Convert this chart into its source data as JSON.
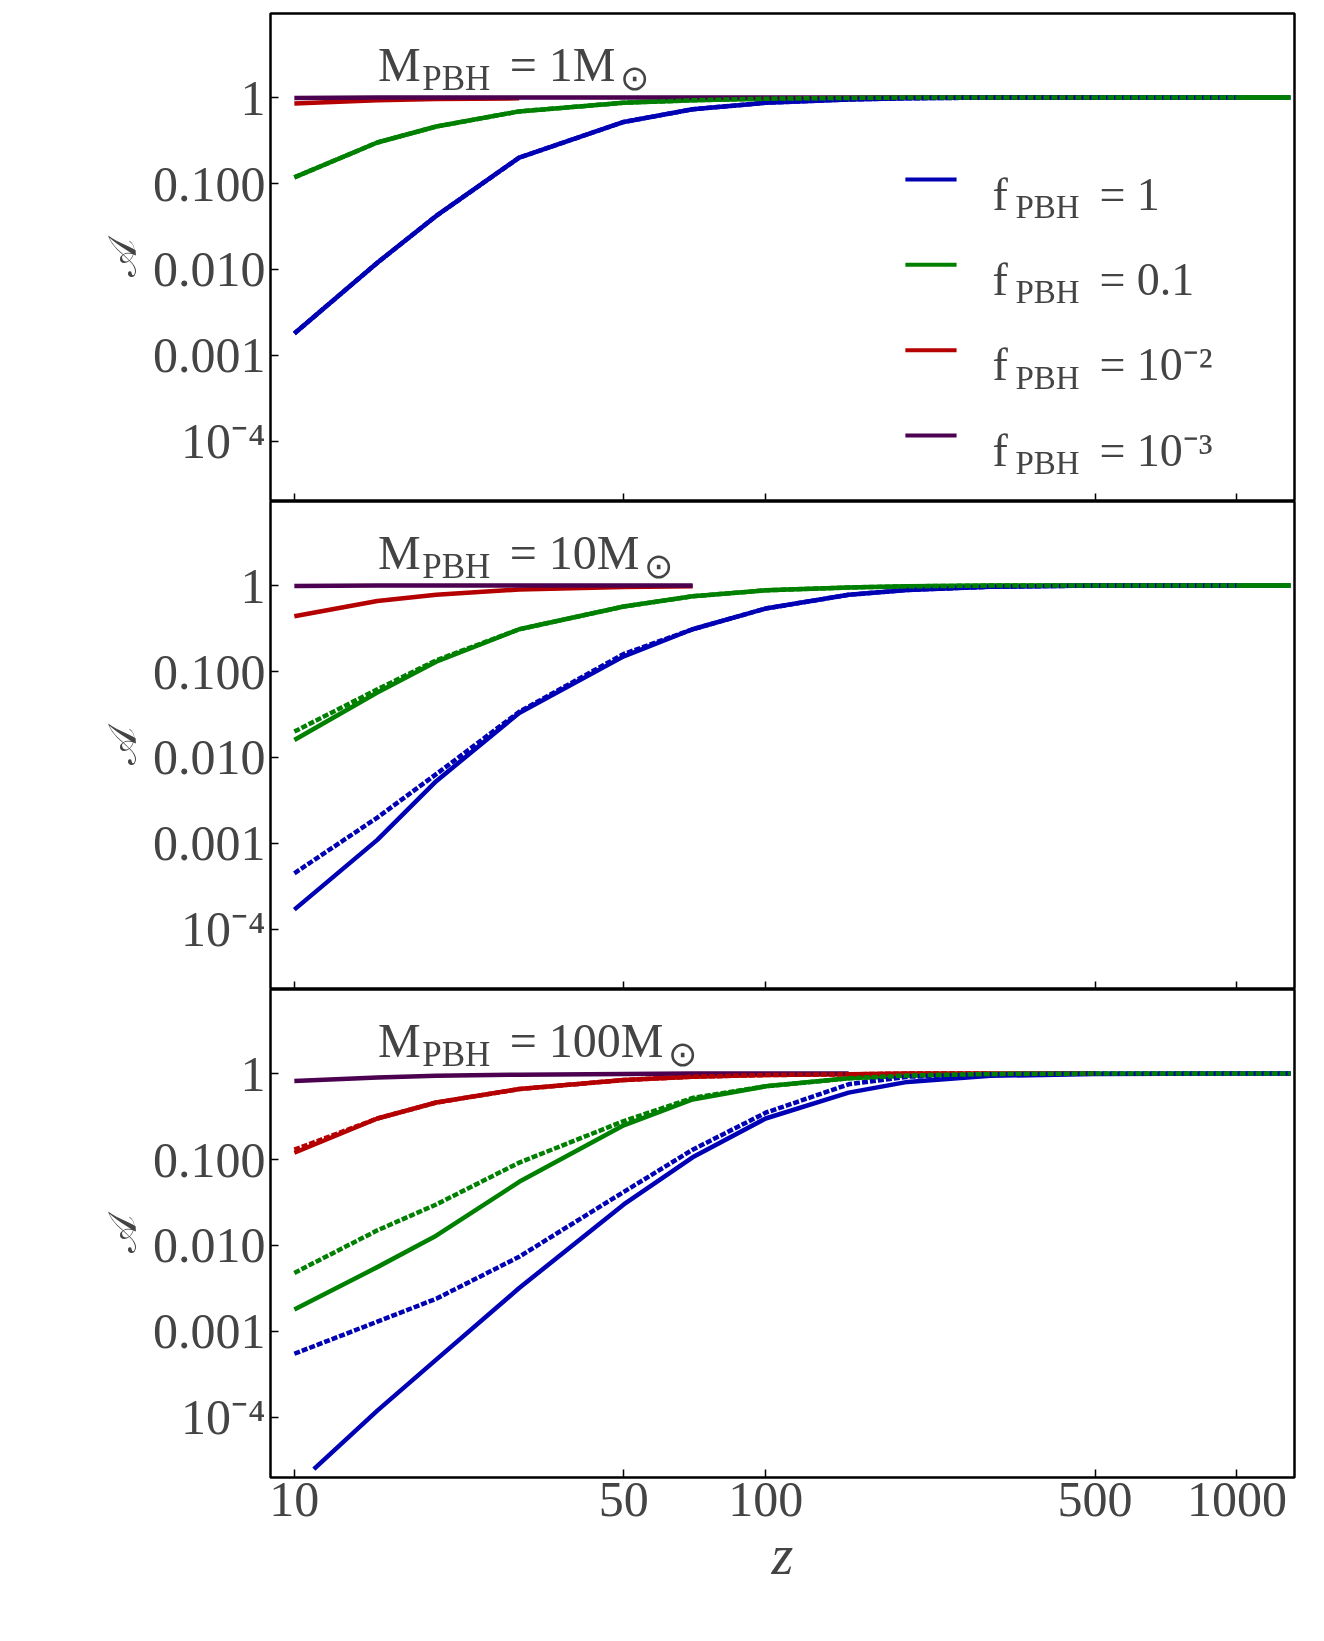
{
  "chart_data": [
    {
      "type": "line",
      "annotations": [
        "M$_{PBH}$ = 1M$_{⊙}$"
      ],
      "ylabel": "𝒜",
      "log": "xy",
      "grid": false,
      "legend": "right",
      "tick_labels": "y",
      "line_style": "solid",
      "xlim": [
        8.9,
        1325
      ],
      "xticks": [
        10,
        50,
        100,
        500,
        1000
      ],
      "ylim": [
        2e-05,
        9.5
      ],
      "yticks": [
        1,
        {
          "value": 0.1,
          "label": "0.100"
        },
        {
          "value": 0.01,
          "label": "0.010"
        },
        {
          "value": 0.001,
          "label": "0.001"
        },
        {
          "value": 0.0001,
          "label": "10⁻⁴"
        }
      ],
      "x": [
        10,
        15,
        20,
        30,
        50,
        70,
        100,
        150,
        200,
        300,
        500,
        1000,
        1300
      ],
      "series": [
        {
          "name": "f$_{PBH}$ = 1",
          "color": "#0000b4",
          "values": [
            0.0018,
            0.012,
            0.042,
            0.2,
            0.52,
            0.73,
            0.87,
            0.95,
            0.98,
            1,
            1,
            1,
            1
          ]
        },
        {
          "name": "f$_{PBH}$ = 0.1",
          "color": "#008000",
          "values": [
            0.118,
            0.3,
            0.46,
            0.69,
            0.87,
            0.93,
            0.97,
            0.99,
            1,
            1,
            1,
            1,
            1
          ]
        },
        {
          "name": "f$_{PBH}$ = 10⁻²",
          "color": "#b40000",
          "values": [
            0.85,
            0.93,
            0.96,
            0.98,
            null,
            null,
            null,
            null,
            null,
            null,
            null,
            null,
            null
          ]
        },
        {
          "name": "f$_{PBH}$ = 10⁻³",
          "color": "#4b0050",
          "values": [
            0.99,
            1,
            1,
            1,
            1,
            1,
            1,
            1,
            1,
            1,
            1,
            null,
            null
          ]
        },
        {
          "color": "#0000b4",
          "line_style": "dashed",
          "values": [
            0.0018,
            0.012,
            0.042,
            0.2,
            0.52,
            0.73,
            0.87,
            0.95,
            0.98,
            1,
            1,
            1,
            null
          ]
        },
        {
          "color": "#008000",
          "line_style": "dashed",
          "values": [
            0.118,
            0.3,
            0.46,
            0.69,
            0.87,
            0.93,
            0.97,
            0.99,
            1,
            1,
            1,
            1,
            1
          ]
        }
      ]
    },
    {
      "type": "line",
      "annotations": [
        "M$_{PBH}$ = 10M$_{⊙}$"
      ],
      "ylabel": "𝒜",
      "log": "xy",
      "grid": false,
      "tick_labels": "y",
      "line_style": "solid",
      "xlim": [
        8.9,
        1325
      ],
      "xticks": [
        10,
        50,
        100,
        500,
        1000
      ],
      "ylim": [
        2e-05,
        9.5
      ],
      "yticks": [
        1,
        {
          "value": 0.1,
          "label": "0.100"
        },
        {
          "value": 0.01,
          "label": "0.010"
        },
        {
          "value": 0.001,
          "label": "0.001"
        },
        {
          "value": 0.0001,
          "label": "10⁻⁴"
        }
      ],
      "x": [
        10,
        15,
        20,
        30,
        50,
        70,
        100,
        150,
        200,
        300,
        500,
        1000,
        1300
      ],
      "series": [
        {
          "color": "#0000b4",
          "values": [
            0.00017,
            0.0011,
            0.0053,
            0.033,
            0.15,
            0.31,
            0.54,
            0.78,
            0.89,
            0.97,
            1,
            1,
            1
          ]
        },
        {
          "color": "#008000",
          "values": [
            0.016,
            0.057,
            0.13,
            0.31,
            0.57,
            0.75,
            0.88,
            0.95,
            0.98,
            1,
            1,
            1,
            1
          ]
        },
        {
          "color": "#b40000",
          "values": [
            0.44,
            0.66,
            0.78,
            0.9,
            0.96,
            0.98,
            null,
            null,
            null,
            null,
            null,
            null,
            null
          ]
        },
        {
          "color": "#4b0050",
          "values": [
            0.99,
            1,
            1,
            1,
            1,
            1,
            null,
            null,
            null,
            null,
            null,
            null,
            null
          ]
        },
        {
          "color": "#0000b4",
          "line_style": "dashed",
          "values": [
            0.00045,
            0.002,
            0.0064,
            0.034,
            0.16,
            0.31,
            0.54,
            0.78,
            0.89,
            0.97,
            1,
            1,
            null
          ]
        },
        {
          "color": "#008000",
          "line_style": "dashed",
          "values": [
            0.02,
            0.062,
            0.135,
            0.31,
            0.57,
            0.75,
            0.88,
            0.95,
            0.98,
            1,
            1,
            1,
            1
          ]
        }
      ]
    },
    {
      "type": "line",
      "annotations": [
        "M$_{PBH}$ = 100M$_{⊙}$"
      ],
      "ylabel": "𝒜",
      "xlabel": "z",
      "log": "xy",
      "grid": false,
      "line_style": "solid",
      "xlim": [
        8.9,
        1325
      ],
      "xticks": [
        10,
        50,
        100,
        500,
        1000
      ],
      "ylim": [
        2e-05,
        9.5
      ],
      "yticks": [
        1,
        {
          "value": 0.1,
          "label": "0.100"
        },
        {
          "value": 0.01,
          "label": "0.010"
        },
        {
          "value": 0.001,
          "label": "0.001"
        },
        {
          "value": 0.0001,
          "label": "10⁻⁴"
        }
      ],
      "x": [
        10,
        15,
        20,
        30,
        50,
        70,
        100,
        150,
        200,
        300,
        500,
        1000,
        1300
      ],
      "series": [
        {
          "color": "#0000b4",
          "x": [
            11,
            15,
            20,
            30,
            50,
            70,
            100,
            150,
            200,
            300,
            500,
            1000,
            1300
          ],
          "values": [
            2.5e-05,
            0.00012,
            0.00047,
            0.0032,
            0.03,
            0.106,
            0.3,
            0.6,
            0.8,
            0.94,
            0.99,
            1,
            1
          ]
        },
        {
          "color": "#008000",
          "values": [
            0.0018,
            0.0056,
            0.013,
            0.055,
            0.25,
            0.5,
            0.71,
            0.88,
            0.95,
            0.99,
            1,
            null,
            null
          ]
        },
        {
          "color": "#b40000",
          "values": [
            0.12,
            0.3,
            0.46,
            0.66,
            0.84,
            0.92,
            0.96,
            0.98,
            1,
            1,
            1,
            null,
            null
          ]
        },
        {
          "color": "#4b0050",
          "values": [
            0.82,
            0.9,
            0.94,
            0.97,
            0.99,
            1,
            1,
            1,
            null,
            null,
            null,
            null,
            null
          ]
        },
        {
          "color": "#b40000",
          "line_style": "dashed",
          "values": [
            0.13,
            0.3,
            0.46,
            0.66,
            0.84,
            0.92,
            0.96,
            0.98,
            1,
            1,
            null,
            null,
            null
          ]
        },
        {
          "color": "#0000b4",
          "line_style": "dashed",
          "values": [
            0.00055,
            0.0013,
            0.0024,
            0.0074,
            0.042,
            0.13,
            0.35,
            0.75,
            0.92,
            0.98,
            1,
            1,
            1
          ]
        },
        {
          "color": "#008000",
          "line_style": "dashed",
          "values": [
            0.0048,
            0.015,
            0.03,
            0.092,
            0.28,
            0.52,
            0.71,
            0.88,
            0.95,
            0.99,
            1,
            1,
            1
          ]
        }
      ]
    }
  ]
}
